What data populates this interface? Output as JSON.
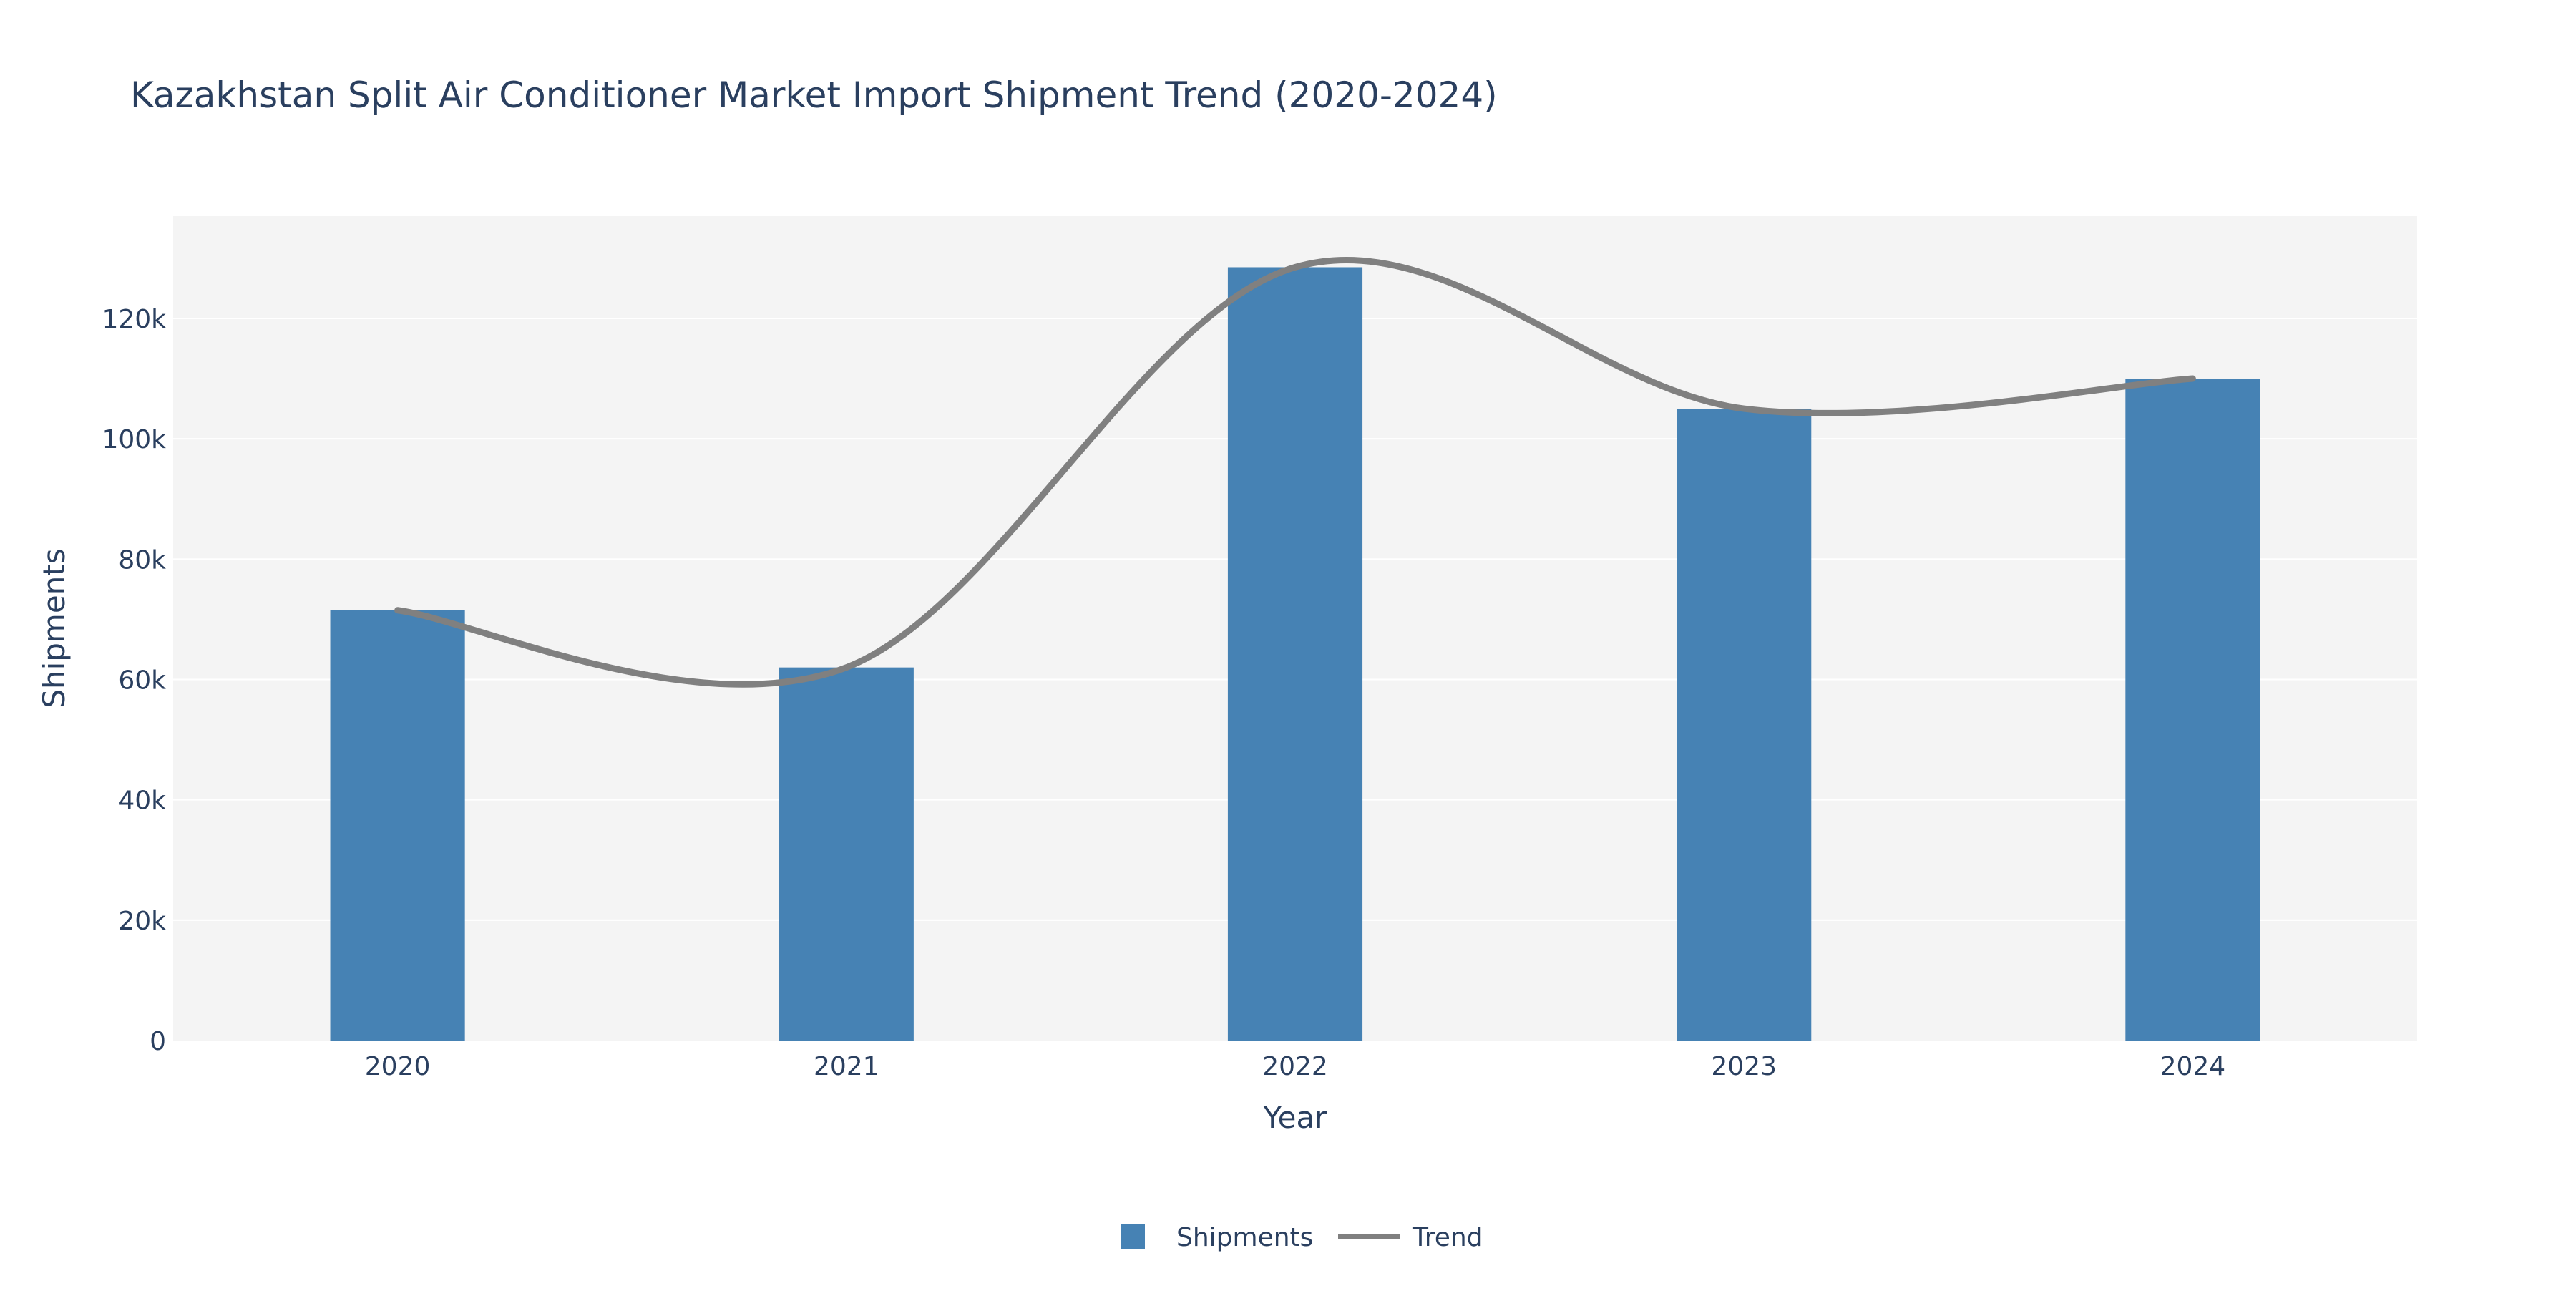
{
  "chart_data": {
    "type": "bar",
    "title": "Kazakhstan Split Air Conditioner Market Import Shipment Trend (2020-2024)",
    "xlabel": "Year",
    "ylabel": "Shipments",
    "categories": [
      "2020",
      "2021",
      "2022",
      "2023",
      "2024"
    ],
    "series": [
      {
        "name": "Shipments",
        "type": "bar",
        "values": [
          71500,
          62000,
          128500,
          105000,
          110000
        ],
        "color": "#4682b4"
      },
      {
        "name": "Trend",
        "type": "line",
        "smoothing": "spline",
        "values": [
          71500,
          62000,
          128500,
          105000,
          110000
        ],
        "color": "#808080"
      }
    ],
    "ylim": [
      0,
      137000
    ],
    "yticks": [
      0,
      20000,
      40000,
      60000,
      80000,
      100000,
      120000
    ],
    "ytick_labels": [
      "0",
      "20k",
      "40k",
      "60k",
      "80k",
      "100k",
      "120k"
    ],
    "grid": true,
    "legend": "bottom-center",
    "plot_background": "#f4f4f4",
    "grid_color": "#ffffff",
    "text_color": "#2a3f5f"
  }
}
